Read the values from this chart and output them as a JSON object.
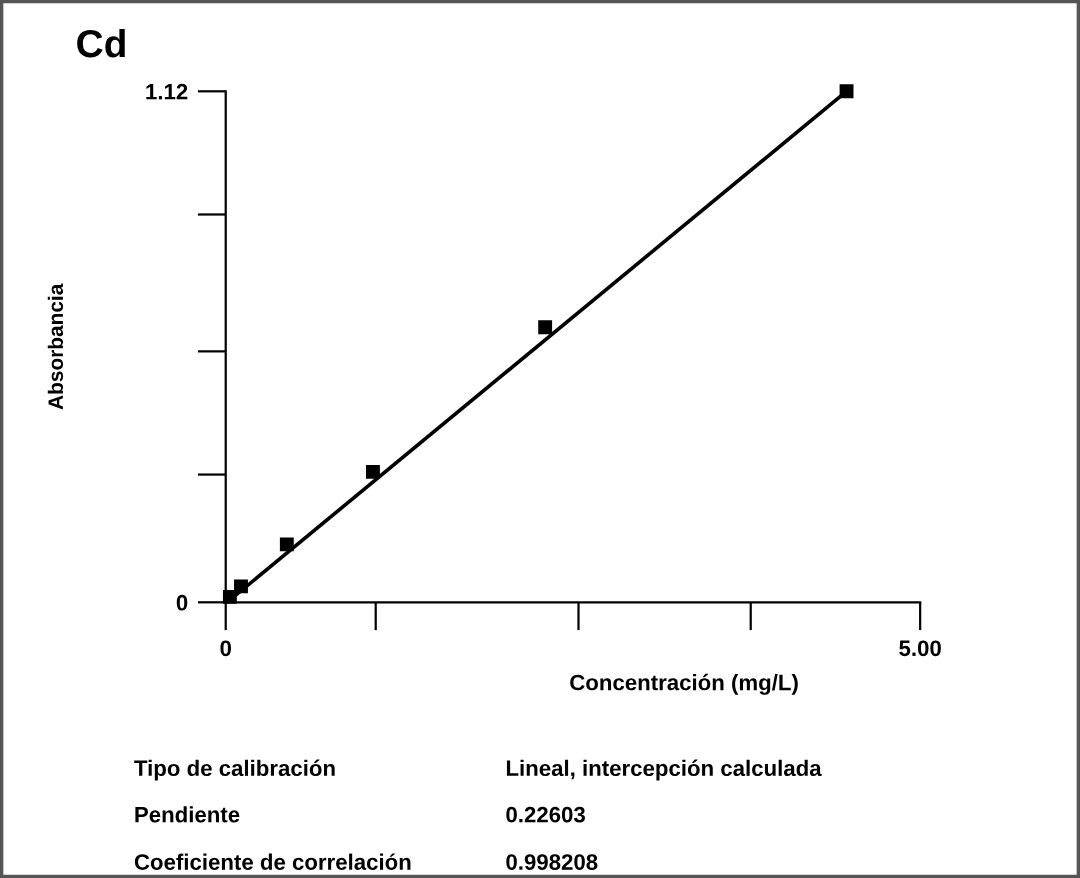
{
  "chart_data": {
    "type": "scatter",
    "title": "Cd",
    "xlabel": "Concentración (mg/L)",
    "ylabel": "Absorbancia",
    "xlim": [
      0,
      5
    ],
    "ylim": [
      0,
      1.12
    ],
    "xticks": [
      0,
      {
        "value": 1.08,
        "label": null
      },
      {
        "value": 2.54,
        "label": null
      },
      {
        "value": 3.78,
        "label": null
      },
      {
        "value": 5,
        "label": "5.00"
      }
    ],
    "yticks": [
      0,
      {
        "value": 0.28,
        "label": null
      },
      {
        "value": 0.55,
        "label": null
      },
      {
        "value": 0.85,
        "label": null
      },
      1.12
    ],
    "grid": false,
    "marker": "square",
    "series": [
      {
        "color": "#000000",
        "x": [
          0.03,
          0.11,
          0.44,
          1.06,
          2.3,
          4.47
        ],
        "values": [
          0.012,
          0.035,
          0.127,
          0.286,
          0.603,
          1.12
        ]
      },
      {
        "type": "line",
        "color": "#000000",
        "x": [
          0.03,
          4.47
        ],
        "values": [
          0.005,
          1.12
        ],
        "line_style": "solid",
        "marker": "none"
      }
    ],
    "annotations": [
      "Tipo de calibración",
      "Lineal, intercepción calculada",
      "Pendiente",
      "0.22603",
      "Coeficiente de correlación",
      "0.998208"
    ]
  }
}
